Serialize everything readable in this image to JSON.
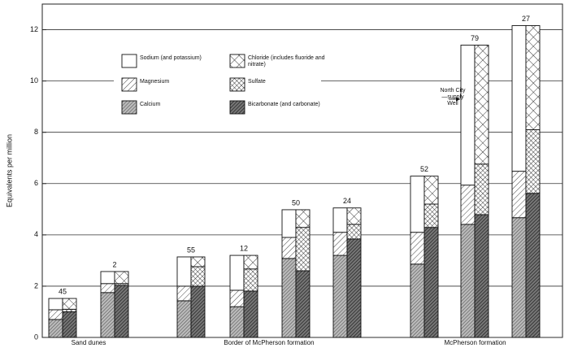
{
  "chart_data": {
    "type": "stacked_pair_bar",
    "y_label": "Equivalents per million",
    "categories": [
      "45",
      "2",
      "55",
      "12",
      "50",
      "24",
      "52",
      "79",
      "27"
    ],
    "groups": [
      {
        "name": "Sand dunes",
        "count": 2
      },
      {
        "name": "Border of McPherson formation",
        "count": 4
      },
      {
        "name": "McPherson formation",
        "count": 3
      }
    ],
    "series": [
      {
        "name": "Calcium",
        "stack": "left",
        "pattern": "dense-hatch",
        "color": "#888888",
        "values": [
          0.7,
          1.75,
          1.43,
          1.2,
          3.08,
          3.2,
          2.86,
          4.41,
          4.67
        ]
      },
      {
        "name": "Magnesium",
        "stack": "left",
        "pattern": "sparse-hatch",
        "color": "#444444",
        "values": [
          0.38,
          0.35,
          0.57,
          0.64,
          0.82,
          0.9,
          1.24,
          1.53,
          1.81
        ]
      },
      {
        "name": "Sodium (and potassium)",
        "stack": "left",
        "pattern": "none",
        "color": "#ffffff",
        "values": [
          0.44,
          0.47,
          1.14,
          1.36,
          1.08,
          0.95,
          2.19,
          5.46,
          5.68
        ]
      },
      {
        "name": "Bicarbonate (and carbonate)",
        "stack": "right",
        "pattern": "dark-hatch",
        "color": "#333333",
        "values": [
          1.0,
          2.03,
          2.0,
          1.81,
          2.6,
          3.84,
          4.29,
          4.79,
          5.62
        ]
      },
      {
        "name": "Sulfate",
        "stack": "right",
        "pattern": "fine-cross",
        "color": "#333333",
        "values": [
          0.1,
          0.07,
          0.76,
          0.86,
          1.69,
          0.57,
          0.91,
          1.97,
          2.48
        ]
      },
      {
        "name": "Chloride (includes fluoride and nitrate)",
        "stack": "right",
        "pattern": "wide-cross",
        "color": "#333333",
        "values": [
          0.42,
          0.47,
          0.38,
          0.53,
          0.69,
          0.64,
          1.09,
          4.64,
          4.06
        ]
      }
    ],
    "ylim": [
      0,
      13
    ],
    "yticks": [
      0,
      2,
      4,
      6,
      8,
      10,
      12
    ],
    "grid": true,
    "annotation": "North City—supply Well"
  }
}
